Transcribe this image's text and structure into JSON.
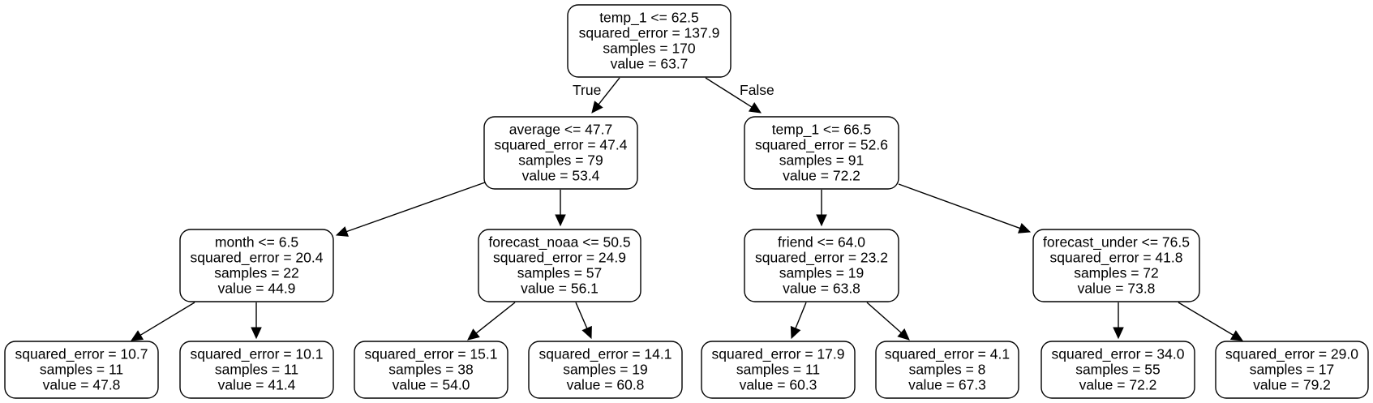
{
  "tree": {
    "nodes": [
      {
        "id": "n0",
        "lines": [
          "temp_1 <= 62.5",
          "squared_error = 137.9",
          "samples = 170",
          "value = 63.7"
        ]
      },
      {
        "id": "n1",
        "lines": [
          "average <= 47.7",
          "squared_error = 47.4",
          "samples = 79",
          "value = 53.4"
        ]
      },
      {
        "id": "n8",
        "lines": [
          "temp_1 <= 66.5",
          "squared_error = 52.6",
          "samples = 91",
          "value = 72.2"
        ]
      },
      {
        "id": "n2",
        "lines": [
          "month <= 6.5",
          "squared_error = 20.4",
          "samples = 22",
          "value = 44.9"
        ]
      },
      {
        "id": "n5",
        "lines": [
          "forecast_noaa <= 50.5",
          "squared_error = 24.9",
          "samples = 57",
          "value = 56.1"
        ]
      },
      {
        "id": "n9",
        "lines": [
          "friend <= 64.0",
          "squared_error = 23.2",
          "samples = 19",
          "value = 63.8"
        ]
      },
      {
        "id": "n12",
        "lines": [
          "forecast_under <= 76.5",
          "squared_error = 41.8",
          "samples = 72",
          "value = 73.8"
        ]
      },
      {
        "id": "n3",
        "lines": [
          "squared_error = 10.7",
          "samples = 11",
          "value = 47.8"
        ]
      },
      {
        "id": "n4",
        "lines": [
          "squared_error = 10.1",
          "samples = 11",
          "value = 41.4"
        ]
      },
      {
        "id": "n6",
        "lines": [
          "squared_error = 15.1",
          "samples = 38",
          "value = 54.0"
        ]
      },
      {
        "id": "n7",
        "lines": [
          "squared_error = 14.1",
          "samples = 19",
          "value = 60.8"
        ]
      },
      {
        "id": "n10",
        "lines": [
          "squared_error = 17.9",
          "samples = 11",
          "value = 60.3"
        ]
      },
      {
        "id": "n11",
        "lines": [
          "squared_error = 4.1",
          "samples = 8",
          "value = 67.3"
        ]
      },
      {
        "id": "n13",
        "lines": [
          "squared_error = 34.0",
          "samples = 55",
          "value = 72.2"
        ]
      },
      {
        "id": "n14",
        "lines": [
          "squared_error = 29.0",
          "samples = 17",
          "value = 79.2"
        ]
      }
    ],
    "edges": [
      {
        "from": "n0",
        "to": "n1"
      },
      {
        "from": "n0",
        "to": "n8"
      },
      {
        "from": "n1",
        "to": "n2"
      },
      {
        "from": "n1",
        "to": "n5"
      },
      {
        "from": "n8",
        "to": "n9"
      },
      {
        "from": "n8",
        "to": "n12"
      },
      {
        "from": "n2",
        "to": "n3"
      },
      {
        "from": "n2",
        "to": "n4"
      },
      {
        "from": "n5",
        "to": "n6"
      },
      {
        "from": "n5",
        "to": "n7"
      },
      {
        "from": "n9",
        "to": "n10"
      },
      {
        "from": "n9",
        "to": "n11"
      },
      {
        "from": "n12",
        "to": "n13"
      },
      {
        "from": "n12",
        "to": "n14"
      }
    ],
    "edge_labels": {
      "true_label": "True",
      "false_label": "False"
    }
  }
}
